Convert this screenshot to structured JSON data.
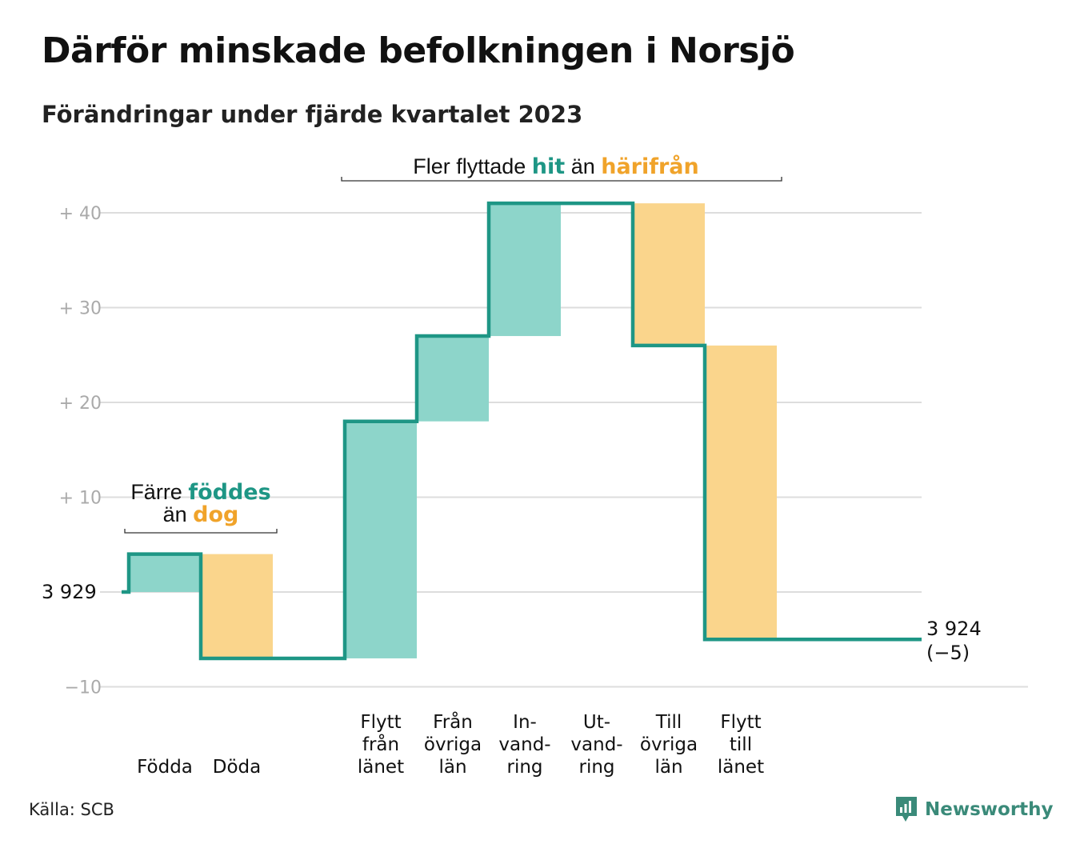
{
  "title": "Därför minskade befolkningen i Norsjö",
  "subtitle": "Förändringar under fjärde kvartalet 2023",
  "source": "Källa: SCB",
  "brand": "Newsworthy",
  "colors": {
    "inflow": "#8dd5ca",
    "outflow": "#fad58c",
    "line": "#1e9685",
    "accent_inflow": "#1e9685",
    "accent_outflow": "#f0a32a",
    "grid": "#dddddd",
    "tick": "#aaaaaa"
  },
  "chart_data": {
    "type": "waterfall",
    "start_value": 3929,
    "start_label": "3  929",
    "end_label_value": "3 924",
    "end_label_change": "(−5)",
    "ylim": [
      -10,
      41
    ],
    "yticks": [
      {
        "value": -10,
        "label": "−10"
      },
      {
        "value": 10,
        "label": "+  10"
      },
      {
        "value": 20,
        "label": "+  20"
      },
      {
        "value": 30,
        "label": "+  30"
      },
      {
        "value": 40,
        "label": "+  40"
      }
    ],
    "steps": [
      {
        "label": [
          "Födda"
        ],
        "change": 4,
        "kind": "inflow"
      },
      {
        "label": [
          "Döda"
        ],
        "change": -11,
        "kind": "outflow"
      },
      {
        "label": [],
        "change": 0,
        "kind": "gap"
      },
      {
        "label": [
          "Flytt",
          "från",
          "länet"
        ],
        "change": 25,
        "kind": "inflow"
      },
      {
        "label": [
          "Från",
          "övriga",
          "län"
        ],
        "change": 9,
        "kind": "inflow"
      },
      {
        "label": [
          "In-",
          "vand-",
          "ring"
        ],
        "change": 14,
        "kind": "inflow"
      },
      {
        "label": [
          "Ut-",
          "vand-",
          "ring"
        ],
        "change": 0,
        "kind": "outflow"
      },
      {
        "label": [
          "Till",
          "övriga",
          "län"
        ],
        "change": -15,
        "kind": "outflow"
      },
      {
        "label": [
          "Flytt",
          "till",
          "länet"
        ],
        "change": -31,
        "kind": "outflow"
      }
    ],
    "annotations": [
      {
        "id": "natural",
        "parts": [
          [
            "Färre ",
            "",
            "föddes",
            "inflow"
          ],
          [
            "än ",
            "",
            "dog",
            "outflow"
          ]
        ]
      },
      {
        "id": "migration",
        "parts": [
          [
            "Fler flyttade ",
            "",
            "hit",
            "inflow",
            " än ",
            "",
            "härifrån",
            "outflow"
          ]
        ]
      }
    ]
  }
}
